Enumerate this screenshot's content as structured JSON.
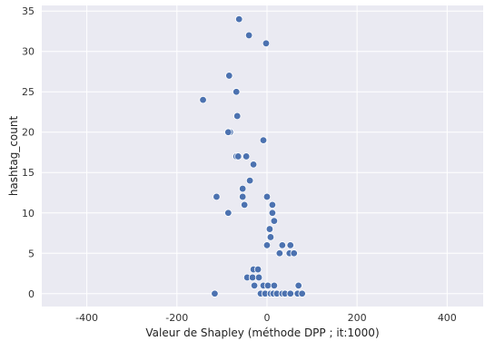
{
  "chart_data": {
    "type": "scatter",
    "title": "",
    "xlabel": "Valeur de Shapley (méthode DPP ; it:1000)",
    "ylabel": "hashtag_count",
    "xlim": [
      -500,
      480
    ],
    "ylim": [
      -1.6,
      35.7
    ],
    "xticks": [
      -400,
      -200,
      0,
      200,
      400
    ],
    "yticks": [
      0,
      5,
      10,
      15,
      20,
      25,
      30,
      35
    ],
    "grid": true,
    "colors": {
      "background": "#eaeaf2",
      "grid": "#ffffff",
      "point": "#4c72b0",
      "point_edge": "#ffffff"
    },
    "points": [
      {
        "x": -62,
        "y": 34
      },
      {
        "x": -40,
        "y": 32
      },
      {
        "x": -2,
        "y": 31
      },
      {
        "x": -84,
        "y": 27
      },
      {
        "x": -68,
        "y": 25
      },
      {
        "x": -142,
        "y": 24
      },
      {
        "x": -66,
        "y": 22
      },
      {
        "x": -82,
        "y": 20
      },
      {
        "x": -86,
        "y": 20
      },
      {
        "x": -8,
        "y": 19
      },
      {
        "x": -68,
        "y": 17
      },
      {
        "x": -64,
        "y": 17
      },
      {
        "x": -46,
        "y": 17
      },
      {
        "x": -30,
        "y": 16
      },
      {
        "x": -38,
        "y": 14
      },
      {
        "x": -54,
        "y": 13
      },
      {
        "x": -112,
        "y": 12
      },
      {
        "x": -54,
        "y": 12
      },
      {
        "x": 0,
        "y": 12
      },
      {
        "x": -50,
        "y": 11
      },
      {
        "x": 12,
        "y": 11
      },
      {
        "x": -86,
        "y": 10
      },
      {
        "x": 12,
        "y": 10
      },
      {
        "x": 16,
        "y": 9
      },
      {
        "x": 6,
        "y": 8
      },
      {
        "x": 8,
        "y": 7
      },
      {
        "x": 0,
        "y": 6
      },
      {
        "x": 34,
        "y": 6
      },
      {
        "x": 52,
        "y": 6
      },
      {
        "x": 28,
        "y": 5
      },
      {
        "x": 50,
        "y": 5
      },
      {
        "x": 60,
        "y": 5
      },
      {
        "x": -30,
        "y": 3
      },
      {
        "x": -20,
        "y": 3
      },
      {
        "x": -44,
        "y": 2
      },
      {
        "x": -32,
        "y": 2
      },
      {
        "x": -18,
        "y": 2
      },
      {
        "x": -28,
        "y": 1
      },
      {
        "x": -8,
        "y": 1
      },
      {
        "x": 2,
        "y": 1
      },
      {
        "x": 16,
        "y": 1
      },
      {
        "x": 70,
        "y": 1
      },
      {
        "x": -116,
        "y": 0
      },
      {
        "x": -14,
        "y": 0
      },
      {
        "x": -4,
        "y": 0
      },
      {
        "x": 8,
        "y": 0
      },
      {
        "x": 14,
        "y": 0
      },
      {
        "x": 22,
        "y": 0
      },
      {
        "x": 34,
        "y": 0
      },
      {
        "x": 40,
        "y": 0
      },
      {
        "x": 52,
        "y": 0
      },
      {
        "x": 68,
        "y": 0
      },
      {
        "x": 78,
        "y": 0
      }
    ]
  }
}
